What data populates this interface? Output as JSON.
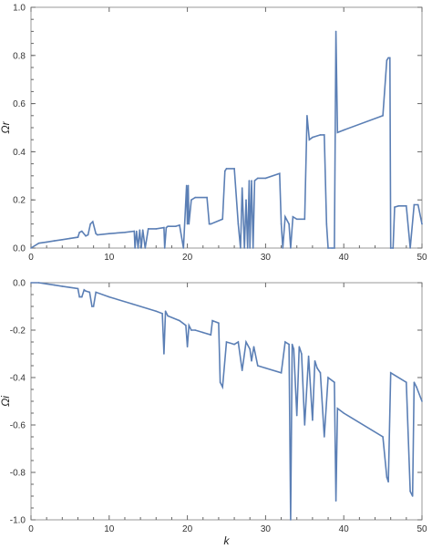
{
  "chart_data": [
    {
      "type": "line",
      "title": "",
      "xlabel": "k",
      "ylabel": "Ωr",
      "xlim": [
        0,
        50
      ],
      "ylim": [
        0,
        1.0
      ],
      "xticks": [
        "0",
        "10",
        "20",
        "30",
        "40",
        "50"
      ],
      "yticks": [
        "0.0",
        "0.2",
        "0.4",
        "0.6",
        "0.8",
        "1.0"
      ],
      "grid": false,
      "color": "#5b7fb5",
      "x": [
        0,
        1,
        2,
        3,
        4,
        5,
        6,
        6.2,
        6.5,
        7,
        7.3,
        7.6,
        7.9,
        8.3,
        8.5,
        10,
        12,
        13.2,
        13.3,
        13.5,
        13.7,
        13.9,
        14.1,
        14.3,
        14.6,
        15,
        16,
        17,
        17.1,
        17.3,
        17.5,
        18.5,
        19,
        19.5,
        19.9,
        20,
        20.1,
        20.2,
        20.5,
        21,
        22.5,
        22.8,
        23,
        24.5,
        24.8,
        25,
        26,
        26.5,
        26.8,
        27,
        27.3,
        27.5,
        27.7,
        27.9,
        28,
        28.2,
        28.4,
        28.6,
        29,
        30,
        31.8,
        32,
        32.2,
        32.5,
        33,
        33.2,
        33.5,
        34,
        35,
        35.3,
        35.6,
        36,
        37,
        37.5,
        37.8,
        38,
        38.5,
        38.8,
        39,
        39.2,
        40,
        45,
        45.5,
        45.7,
        45.9,
        46,
        46.3,
        46.5,
        47,
        48,
        48.5,
        49,
        49.5,
        50
      ],
      "values": [
        0.0,
        0.02,
        0.025,
        0.03,
        0.035,
        0.04,
        0.045,
        0.065,
        0.07,
        0.05,
        0.055,
        0.1,
        0.11,
        0.06,
        0.055,
        0.06,
        0.065,
        0.07,
        0.0,
        0.07,
        0.0,
        0.075,
        0.0,
        0.075,
        0.0,
        0.08,
        0.08,
        0.085,
        0.0,
        0.085,
        0.09,
        0.09,
        0.095,
        0.0,
        0.26,
        0.1,
        0.26,
        0.1,
        0.2,
        0.21,
        0.21,
        0.1,
        0.1,
        0.12,
        0.32,
        0.33,
        0.33,
        0.1,
        0.0,
        0.25,
        0.0,
        0.2,
        0.0,
        0.28,
        0.0,
        0.28,
        0.0,
        0.28,
        0.29,
        0.29,
        0.31,
        0.1,
        0.0,
        0.13,
        0.1,
        0.0,
        0.13,
        0.12,
        0.12,
        0.55,
        0.45,
        0.46,
        0.47,
        0.47,
        0.1,
        0.0,
        0.0,
        0.0,
        0.9,
        0.48,
        0.49,
        0.55,
        0.78,
        0.79,
        0.79,
        0.0,
        0.0,
        0.17,
        0.175,
        0.175,
        0.0,
        0.18,
        0.18,
        0.1
      ]
    },
    {
      "type": "line",
      "title": "",
      "xlabel": "k",
      "ylabel": "Ωi",
      "xlim": [
        0,
        50
      ],
      "ylim": [
        -1.0,
        0.0
      ],
      "xticks": [
        "0",
        "10",
        "20",
        "30",
        "40",
        "50"
      ],
      "yticks": [
        "0.0",
        "-0.2",
        "-0.4",
        "-0.6",
        "-0.8",
        "-1.0"
      ],
      "grid": false,
      "color": "#5b7fb5",
      "x": [
        0,
        1,
        2,
        3,
        4,
        5,
        6,
        6.2,
        6.5,
        6.8,
        7,
        7.5,
        7.8,
        8,
        8.3,
        10,
        13,
        16,
        16.8,
        17,
        17.2,
        17.5,
        19,
        19.8,
        20,
        20.2,
        20.5,
        21,
        22,
        23,
        23.2,
        24,
        24.2,
        24.5,
        25,
        26,
        26.5,
        27,
        27.5,
        28,
        28.2,
        28.5,
        29,
        30,
        32,
        32.5,
        33,
        33.2,
        33.4,
        33.6,
        34,
        34.3,
        34.6,
        35,
        35.5,
        36,
        36.3,
        36.6,
        37,
        37.5,
        38,
        38.8,
        39,
        39.2,
        40,
        45,
        45.5,
        45.7,
        46,
        48,
        48.5,
        48.8,
        49,
        49.3,
        50
      ],
      "values": [
        0.0,
        0.0,
        -0.005,
        -0.01,
        -0.015,
        -0.02,
        -0.025,
        -0.06,
        -0.06,
        -0.03,
        -0.035,
        -0.04,
        -0.1,
        -0.1,
        -0.04,
        -0.06,
        -0.09,
        -0.12,
        -0.13,
        -0.3,
        -0.12,
        -0.14,
        -0.16,
        -0.18,
        -0.27,
        -0.18,
        -0.2,
        -0.2,
        -0.21,
        -0.22,
        -0.16,
        -0.17,
        -0.42,
        -0.44,
        -0.25,
        -0.26,
        -0.25,
        -0.37,
        -0.25,
        -0.28,
        -0.33,
        -0.27,
        -0.35,
        -0.36,
        -0.38,
        -0.25,
        -0.26,
        -1.0,
        -0.26,
        -0.28,
        -0.56,
        -0.27,
        -0.3,
        -0.6,
        -0.31,
        -0.58,
        -0.33,
        -0.36,
        -0.38,
        -0.65,
        -0.4,
        -0.42,
        -0.92,
        -0.53,
        -0.55,
        -0.65,
        -0.82,
        -0.84,
        -0.38,
        -0.42,
        -0.88,
        -0.9,
        -0.42,
        -0.44,
        -0.5
      ]
    }
  ]
}
